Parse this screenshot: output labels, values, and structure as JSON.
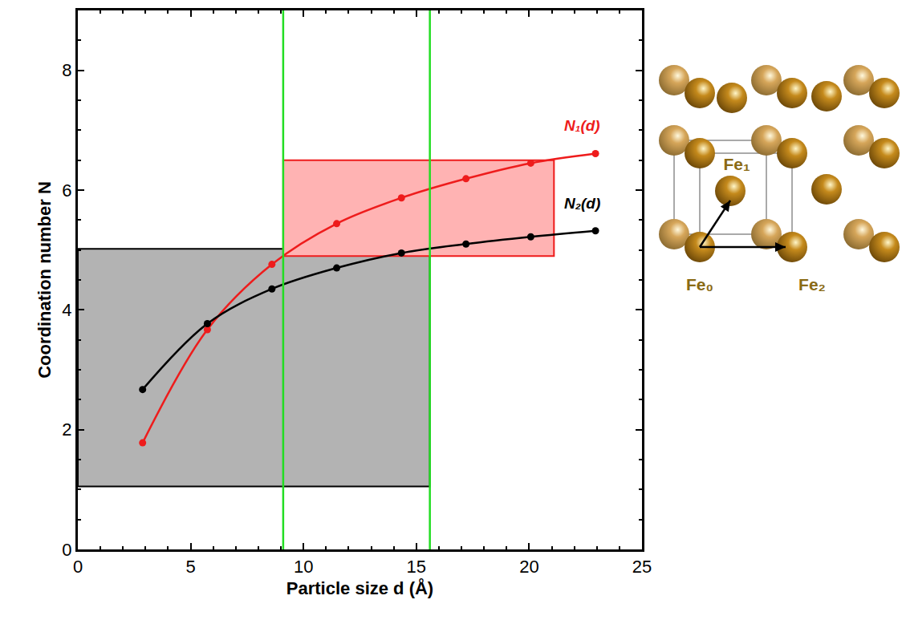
{
  "chart_data": {
    "type": "line",
    "x_label": "Particle size d (Å)",
    "y_label": "Coordination number N",
    "xlim": [
      0,
      25
    ],
    "xticks": [
      0,
      5,
      10,
      15,
      20,
      25
    ],
    "ylim": [
      0,
      9
    ],
    "yticks": [
      0,
      2,
      4,
      6,
      8
    ],
    "grid": false,
    "marker": "circle",
    "series": [
      {
        "name": "N₁(d)",
        "color": "#ee1c1c",
        "x": [
          2.87,
          5.74,
          8.6,
          11.47,
          14.34,
          17.2,
          20.07,
          22.94
        ],
        "values": [
          1.78,
          3.67,
          4.76,
          5.44,
          5.87,
          6.19,
          6.45,
          6.61
        ]
      },
      {
        "name": "N₂(d)",
        "color": "#000000",
        "x": [
          2.87,
          5.74,
          8.6,
          11.47,
          14.34,
          17.2,
          20.07,
          22.94
        ],
        "values": [
          2.67,
          3.77,
          4.35,
          4.7,
          4.95,
          5.1,
          5.22,
          5.32
        ]
      }
    ],
    "regions": [
      {
        "x": [
          0,
          15.6
        ],
        "y": [
          1.05,
          5.02
        ],
        "color": "#b3b3b3",
        "edge_color": "#000000"
      },
      {
        "x": [
          9.1,
          21.1
        ],
        "y": [
          4.9,
          6.5
        ],
        "color": "#ffb3b3",
        "edge_color": "#ee1c1c"
      }
    ],
    "vlines": {
      "x": [
        9.1,
        15.6
      ],
      "color": "#22dd22"
    },
    "diagram": {
      "labels": [
        "Fe₀",
        "Fe₁",
        "Fe₂"
      ],
      "color": "#8a6a14"
    }
  }
}
